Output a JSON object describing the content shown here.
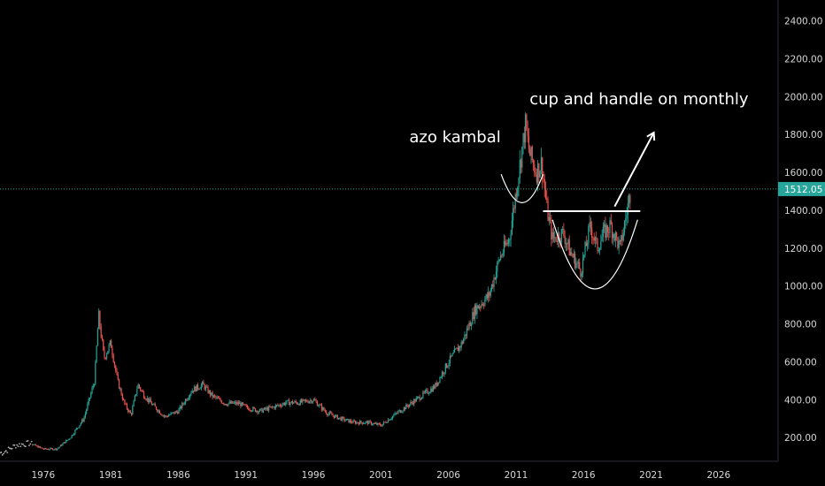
{
  "chart_data": {
    "type": "candlestick",
    "title": "",
    "xlabel": "",
    "ylabel": "",
    "x_range": [
      1972.8,
      2030.4
    ],
    "y_range": [
      75,
      2510
    ],
    "x_ticks": [
      "1976",
      "1981",
      "1986",
      "1991",
      "1996",
      "2001",
      "2006",
      "2011",
      "2016",
      "2021",
      "2026"
    ],
    "y_ticks": [
      "200.00",
      "400.00",
      "600.00",
      "800.00",
      "1000.00",
      "1200.00",
      "1400.00",
      "1600.00",
      "1800.00",
      "2000.00",
      "2200.00",
      "2400.00"
    ],
    "last_price": "1512.05",
    "last_price_value": 1512.05,
    "up_color": "#26a69a",
    "down_color": "#ef5350",
    "price_label_color": "#26a69a",
    "grid": false,
    "price_path": [
      [
        1973.0,
        120
      ],
      [
        1974.0,
        160
      ],
      [
        1975.0,
        170
      ],
      [
        1976.0,
        140
      ],
      [
        1977.0,
        140
      ],
      [
        1978.0,
        200
      ],
      [
        1979.0,
        300
      ],
      [
        1979.8,
        500
      ],
      [
        1980.1,
        850
      ],
      [
        1980.5,
        620
      ],
      [
        1981.0,
        700
      ],
      [
        1981.5,
        500
      ],
      [
        1982.0,
        380
      ],
      [
        1982.5,
        320
      ],
      [
        1983.0,
        480
      ],
      [
        1983.5,
        420
      ],
      [
        1984.0,
        380
      ],
      [
        1985.0,
        310
      ],
      [
        1986.0,
        340
      ],
      [
        1987.0,
        450
      ],
      [
        1987.8,
        480
      ],
      [
        1988.5,
        420
      ],
      [
        1989.5,
        380
      ],
      [
        1990.5,
        380
      ],
      [
        1991.0,
        360
      ],
      [
        1992.0,
        340
      ],
      [
        1993.0,
        360
      ],
      [
        1994.0,
        385
      ],
      [
        1995.0,
        385
      ],
      [
        1996.0,
        400
      ],
      [
        1997.0,
        330
      ],
      [
        1998.0,
        300
      ],
      [
        1999.0,
        280
      ],
      [
        2000.0,
        280
      ],
      [
        2001.0,
        265
      ],
      [
        2002.0,
        320
      ],
      [
        2003.0,
        370
      ],
      [
        2004.0,
        420
      ],
      [
        2005.0,
        470
      ],
      [
        2006.0,
        600
      ],
      [
        2007.0,
        700
      ],
      [
        2008.0,
        880
      ],
      [
        2009.0,
        950
      ],
      [
        2009.8,
        1150
      ],
      [
        2010.5,
        1250
      ],
      [
        2011.0,
        1500
      ],
      [
        2011.7,
        1850
      ],
      [
        2012.0,
        1700
      ],
      [
        2012.5,
        1600
      ],
      [
        2012.9,
        1650
      ],
      [
        2013.3,
        1400
      ],
      [
        2013.7,
        1250
      ],
      [
        2014.5,
        1280
      ],
      [
        2015.0,
        1180
      ],
      [
        2015.8,
        1080
      ],
      [
        2016.5,
        1320
      ],
      [
        2017.0,
        1200
      ],
      [
        2017.5,
        1280
      ],
      [
        2018.0,
        1320
      ],
      [
        2018.7,
        1200
      ],
      [
        2019.0,
        1310
      ],
      [
        2019.5,
        1512
      ]
    ],
    "annotations": [
      {
        "text": "cup and handle on monthly",
        "x": 2012,
        "y": 1960
      },
      {
        "text": "azo kambal",
        "x": 2003.1,
        "y": 1760
      }
    ],
    "resistance_line": {
      "x1": 2013.0,
      "x2": 2020.2,
      "y": 1395
    },
    "cup_arc": {
      "x_start": 2013.7,
      "x_end": 2020.0,
      "y_rim": 1350,
      "y_bottom": 985
    },
    "handle_arc": {
      "x_start": 2009.9,
      "x_end": 2013.0,
      "y_rim": 1590,
      "y_bottom": 1440
    },
    "arrow": {
      "x1": 2018.3,
      "y1": 1420,
      "x2": 2021.2,
      "y2": 1810
    },
    "left_dots": [
      1972.8,
      1975.2
    ]
  }
}
